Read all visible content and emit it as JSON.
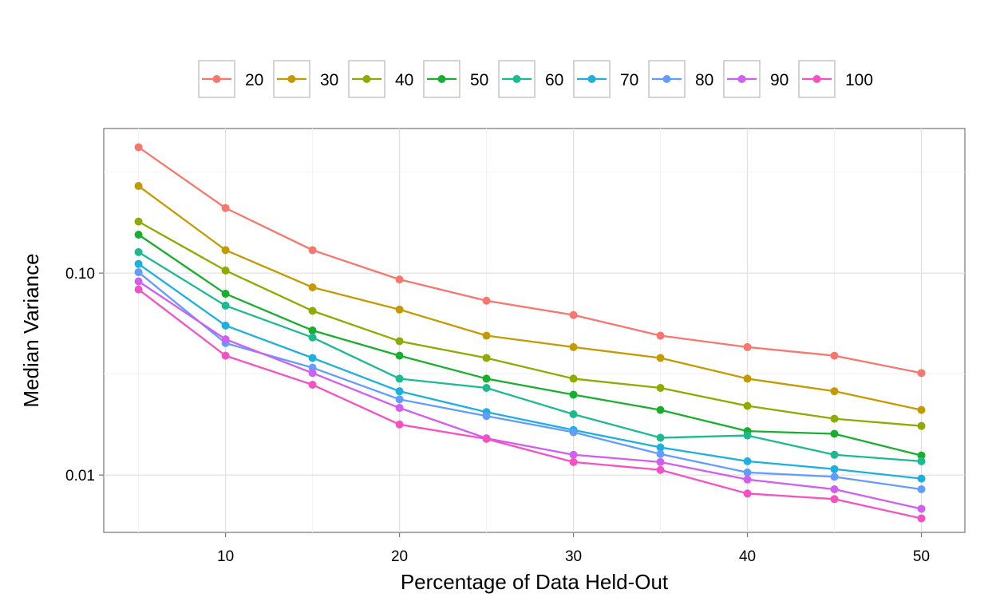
{
  "chart_data": {
    "type": "line",
    "xlabel": "Percentage of Data Held-Out",
    "ylabel": "Median Variance",
    "yscale": "log",
    "xlim": [
      3,
      52.5
    ],
    "ylim": [
      0.0052,
      0.52
    ],
    "grid": true,
    "legend_position": "top",
    "x": [
      5,
      10,
      15,
      20,
      25,
      30,
      35,
      40,
      45,
      50
    ],
    "x_ticks": [
      10,
      20,
      30,
      40,
      50
    ],
    "x_tick_labels": [
      "10",
      "20",
      "30",
      "40",
      "50"
    ],
    "y_ticks": [
      0.01,
      0.1
    ],
    "y_tick_labels": [
      "0.01",
      "0.10"
    ],
    "series": [
      {
        "name": "20",
        "color": "#F8766D",
        "values": [
          0.42,
          0.21,
          0.13,
          0.093,
          0.073,
          0.062,
          0.049,
          0.043,
          0.039,
          0.032
        ]
      },
      {
        "name": "30",
        "color": "#C49A00",
        "values": [
          0.27,
          0.13,
          0.085,
          0.066,
          0.049,
          0.043,
          0.038,
          0.03,
          0.026,
          0.021
        ]
      },
      {
        "name": "40",
        "color": "#8FAA00",
        "values": [
          0.18,
          0.103,
          0.065,
          0.046,
          0.038,
          0.03,
          0.027,
          0.022,
          0.019,
          0.0175
        ]
      },
      {
        "name": "50",
        "color": "#19AF2E",
        "values": [
          0.155,
          0.079,
          0.052,
          0.039,
          0.03,
          0.025,
          0.021,
          0.0165,
          0.016,
          0.0125
        ]
      },
      {
        "name": "60",
        "color": "#1CBA91",
        "values": [
          0.127,
          0.069,
          0.048,
          0.03,
          0.027,
          0.02,
          0.0153,
          0.0157,
          0.0126,
          0.0117
        ]
      },
      {
        "name": "70",
        "color": "#1CAFE0",
        "values": [
          0.111,
          0.055,
          0.038,
          0.026,
          0.0205,
          0.0167,
          0.0137,
          0.0117,
          0.0107,
          0.0096
        ]
      },
      {
        "name": "80",
        "color": "#619CFF",
        "values": [
          0.101,
          0.045,
          0.034,
          0.0237,
          0.0196,
          0.0163,
          0.0127,
          0.0103,
          0.0098,
          0.0085
        ]
      },
      {
        "name": "90",
        "color": "#D15EF0",
        "values": [
          0.091,
          0.047,
          0.032,
          0.0215,
          0.0152,
          0.0126,
          0.0116,
          0.0095,
          0.0085,
          0.0068
        ]
      },
      {
        "name": "100",
        "color": "#F651C2",
        "values": [
          0.083,
          0.039,
          0.028,
          0.0178,
          0.0151,
          0.0116,
          0.0106,
          0.0081,
          0.0076,
          0.0061
        ]
      }
    ]
  }
}
